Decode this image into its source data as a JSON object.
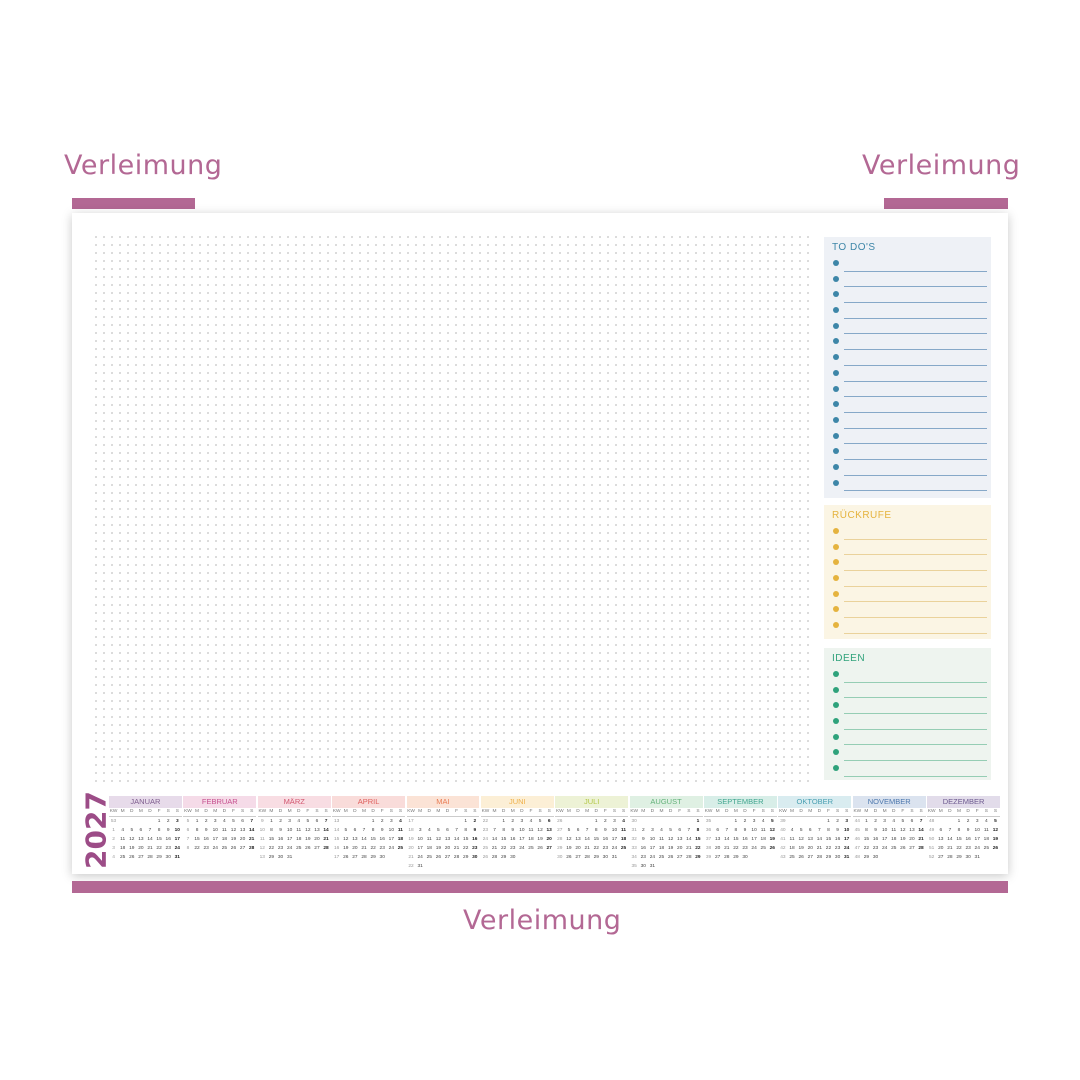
{
  "glue": {
    "label_top_left": "Verleimung",
    "label_top_right": "Verleimung",
    "label_bottom": "Verleimung",
    "color": "#b36894"
  },
  "sheet": {
    "panels": [
      {
        "title": "TO DO'S",
        "lines": 15,
        "bg": "#eef1f6",
        "accent": "#3d86a8",
        "line_color": "#86a8c8"
      },
      {
        "title": "RÜCKRUFE",
        "lines": 7,
        "bg": "#fbf5e4",
        "accent": "#e5b33e",
        "line_color": "#ead29b"
      },
      {
        "title": "IDEEN",
        "lines": 7,
        "bg": "#eef4ef",
        "accent": "#2fa27b",
        "line_color": "#95cdb4"
      }
    ],
    "calendar": {
      "year": "2027",
      "year_color": "#9c4c87",
      "weekday_header": [
        "KW",
        "M",
        "D",
        "M",
        "D",
        "F",
        "S",
        "S"
      ],
      "months": [
        {
          "name": "JANUAR",
          "color": "#7e5d8e",
          "bg": "#e7dbea",
          "rows": [
            [
              "53",
              "",
              "",
              "",
              "",
              "1",
              "2",
              "3"
            ],
            [
              "1",
              "4",
              "5",
              "6",
              "7",
              "8",
              "9",
              "10"
            ],
            [
              "2",
              "11",
              "12",
              "13",
              "14",
              "15",
              "16",
              "17"
            ],
            [
              "3",
              "18",
              "19",
              "20",
              "21",
              "22",
              "23",
              "24"
            ],
            [
              "4",
              "25",
              "26",
              "27",
              "28",
              "29",
              "30",
              "31"
            ]
          ]
        },
        {
          "name": "FEBRUAR",
          "color": "#c64f8e",
          "bg": "#f5dbe8",
          "rows": [
            [
              "5",
              "1",
              "2",
              "3",
              "4",
              "5",
              "6",
              "7"
            ],
            [
              "6",
              "8",
              "9",
              "10",
              "11",
              "12",
              "13",
              "14"
            ],
            [
              "7",
              "15",
              "16",
              "17",
              "18",
              "19",
              "20",
              "21"
            ],
            [
              "8",
              "22",
              "23",
              "24",
              "25",
              "26",
              "27",
              "28"
            ]
          ]
        },
        {
          "name": "MÄRZ",
          "color": "#d2566f",
          "bg": "#f8dde3",
          "rows": [
            [
              "9",
              "1",
              "2",
              "3",
              "4",
              "5",
              "6",
              "7"
            ],
            [
              "10",
              "8",
              "9",
              "10",
              "11",
              "12",
              "13",
              "14"
            ],
            [
              "11",
              "15",
              "16",
              "17",
              "18",
              "19",
              "20",
              "21"
            ],
            [
              "12",
              "22",
              "23",
              "24",
              "25",
              "26",
              "27",
              "28"
            ],
            [
              "13",
              "29",
              "30",
              "31",
              "",
              "",
              "",
              ""
            ]
          ]
        },
        {
          "name": "APRIL",
          "color": "#de5e5c",
          "bg": "#f9dcda",
          "rows": [
            [
              "13",
              "",
              "",
              "",
              "1",
              "2",
              "3",
              "4"
            ],
            [
              "14",
              "5",
              "6",
              "7",
              "8",
              "9",
              "10",
              "11"
            ],
            [
              "15",
              "12",
              "13",
              "14",
              "15",
              "16",
              "17",
              "18"
            ],
            [
              "16",
              "19",
              "20",
              "21",
              "22",
              "23",
              "24",
              "25"
            ],
            [
              "17",
              "26",
              "27",
              "28",
              "29",
              "30",
              "",
              ""
            ]
          ]
        },
        {
          "name": "MAI",
          "color": "#ea7d55",
          "bg": "#fbe3d6",
          "rows": [
            [
              "17",
              "",
              "",
              "",
              "",
              "",
              "1",
              "2"
            ],
            [
              "18",
              "3",
              "4",
              "5",
              "6",
              "7",
              "8",
              "9"
            ],
            [
              "19",
              "10",
              "11",
              "12",
              "13",
              "14",
              "15",
              "16"
            ],
            [
              "20",
              "17",
              "18",
              "19",
              "20",
              "21",
              "22",
              "23"
            ],
            [
              "21",
              "24",
              "25",
              "26",
              "27",
              "28",
              "29",
              "30"
            ],
            [
              "22",
              "31",
              "",
              "",
              "",
              "",
              "",
              ""
            ]
          ]
        },
        {
          "name": "JUNI",
          "color": "#efb04a",
          "bg": "#fcefd6",
          "rows": [
            [
              "22",
              "",
              "1",
              "2",
              "3",
              "4",
              "5",
              "6"
            ],
            [
              "23",
              "7",
              "8",
              "9",
              "10",
              "11",
              "12",
              "13"
            ],
            [
              "24",
              "14",
              "15",
              "16",
              "17",
              "18",
              "19",
              "20"
            ],
            [
              "25",
              "21",
              "22",
              "23",
              "24",
              "25",
              "26",
              "27"
            ],
            [
              "26",
              "28",
              "29",
              "30",
              "",
              "",
              "",
              ""
            ]
          ]
        },
        {
          "name": "JULI",
          "color": "#b3c746",
          "bg": "#edf2d6",
          "rows": [
            [
              "26",
              "",
              "",
              "",
              "1",
              "2",
              "3",
              "4"
            ],
            [
              "27",
              "5",
              "6",
              "7",
              "8",
              "9",
              "10",
              "11"
            ],
            [
              "28",
              "12",
              "13",
              "14",
              "15",
              "16",
              "17",
              "18"
            ],
            [
              "29",
              "19",
              "20",
              "21",
              "22",
              "23",
              "24",
              "25"
            ],
            [
              "30",
              "26",
              "27",
              "28",
              "29",
              "30",
              "31",
              ""
            ]
          ]
        },
        {
          "name": "AUGUST",
          "color": "#63b27a",
          "bg": "#dff0e3",
          "rows": [
            [
              "30",
              "",
              "",
              "",
              "",
              "",
              "",
              "1"
            ],
            [
              "31",
              "2",
              "3",
              "4",
              "5",
              "6",
              "7",
              "8"
            ],
            [
              "32",
              "9",
              "10",
              "11",
              "12",
              "13",
              "14",
              "15"
            ],
            [
              "33",
              "16",
              "17",
              "18",
              "19",
              "20",
              "21",
              "22"
            ],
            [
              "34",
              "23",
              "24",
              "25",
              "26",
              "27",
              "28",
              "29"
            ],
            [
              "35",
              "30",
              "31",
              "",
              "",
              "",
              "",
              ""
            ]
          ]
        },
        {
          "name": "SEPTEMBER",
          "color": "#3fa58e",
          "bg": "#d8eee8",
          "rows": [
            [
              "35",
              "",
              "",
              "1",
              "2",
              "3",
              "4",
              "5"
            ],
            [
              "36",
              "6",
              "7",
              "8",
              "9",
              "10",
              "11",
              "12"
            ],
            [
              "37",
              "13",
              "14",
              "15",
              "16",
              "17",
              "18",
              "19"
            ],
            [
              "38",
              "20",
              "21",
              "22",
              "23",
              "24",
              "25",
              "26"
            ],
            [
              "39",
              "27",
              "28",
              "29",
              "30",
              "",
              "",
              ""
            ]
          ]
        },
        {
          "name": "OKTOBER",
          "color": "#4aa0b2",
          "bg": "#d9ecf0",
          "rows": [
            [
              "39",
              "",
              "",
              "",
              "",
              "1",
              "2",
              "3"
            ],
            [
              "40",
              "4",
              "5",
              "6",
              "7",
              "8",
              "9",
              "10"
            ],
            [
              "41",
              "11",
              "12",
              "13",
              "14",
              "15",
              "16",
              "17"
            ],
            [
              "42",
              "18",
              "19",
              "20",
              "21",
              "22",
              "23",
              "24"
            ],
            [
              "43",
              "25",
              "26",
              "27",
              "28",
              "29",
              "30",
              "31"
            ]
          ]
        },
        {
          "name": "NOVEMBER",
          "color": "#4c77ad",
          "bg": "#dbe3ef",
          "rows": [
            [
              "44",
              "1",
              "2",
              "3",
              "4",
              "5",
              "6",
              "7"
            ],
            [
              "45",
              "8",
              "9",
              "10",
              "11",
              "12",
              "13",
              "14"
            ],
            [
              "46",
              "15",
              "16",
              "17",
              "18",
              "19",
              "20",
              "21"
            ],
            [
              "47",
              "22",
              "23",
              "24",
              "25",
              "26",
              "27",
              "28"
            ],
            [
              "48",
              "29",
              "30",
              "",
              "",
              "",
              "",
              ""
            ]
          ]
        },
        {
          "name": "DEZEMBER",
          "color": "#6d5a8f",
          "bg": "#e2dcea",
          "rows": [
            [
              "48",
              "",
              "",
              "1",
              "2",
              "3",
              "4",
              "5"
            ],
            [
              "49",
              "6",
              "7",
              "8",
              "9",
              "10",
              "11",
              "12"
            ],
            [
              "50",
              "13",
              "14",
              "15",
              "16",
              "17",
              "18",
              "19"
            ],
            [
              "51",
              "20",
              "21",
              "22",
              "23",
              "24",
              "25",
              "26"
            ],
            [
              "52",
              "27",
              "28",
              "29",
              "30",
              "31",
              "",
              ""
            ]
          ]
        }
      ]
    }
  }
}
